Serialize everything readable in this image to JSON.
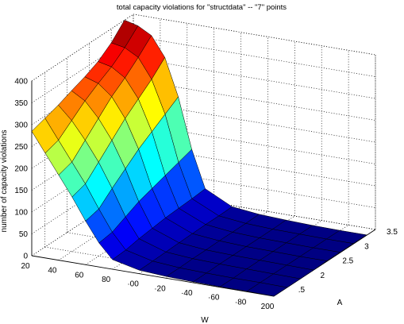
{
  "chart_data": {
    "type": "surface",
    "title": "total capacity violations for \"structdata\" -- \"7\" points",
    "xlabel": "W",
    "ylabel": "A",
    "zlabel": "number of capacity violations",
    "xlim": [
      20,
      200
    ],
    "ylim": [
      1.2,
      3.5
    ],
    "zlim": [
      0,
      400
    ],
    "x_ticks": [
      "20",
      "40",
      "60",
      "80",
      "100",
      "120",
      "140",
      "160",
      "180",
      "200"
    ],
    "x_ticks_visible": [
      "20",
      "40",
      "60",
      "80",
      "·00",
      "·20",
      "·40",
      "·60",
      "·80",
      "200"
    ],
    "y_ticks": [
      "1.5",
      "2",
      "2.5",
      "3",
      "3.5"
    ],
    "y_ticks_visible": [
      ".5",
      "2",
      "2.5",
      "3",
      "3.5"
    ],
    "z_ticks": [
      "0",
      "50",
      "100",
      "150",
      "200",
      "250",
      "300",
      "350",
      "400"
    ],
    "W": [
      20,
      30,
      40,
      50,
      60,
      70,
      80,
      100,
      120,
      140,
      160,
      180,
      200
    ],
    "A": [
      1.2,
      1.5,
      1.8,
      2.1,
      2.4,
      2.7,
      3.0,
      3.3
    ],
    "Z": [
      [
        285,
        240,
        195,
        150,
        100,
        55,
        22,
        8,
        4,
        2,
        1,
        1,
        0
      ],
      [
        295,
        250,
        205,
        160,
        108,
        60,
        24,
        9,
        4,
        2,
        1,
        1,
        0
      ],
      [
        305,
        275,
        235,
        190,
        135,
        75,
        30,
        10,
        5,
        3,
        2,
        1,
        0
      ],
      [
        318,
        300,
        265,
        220,
        160,
        90,
        34,
        11,
        5,
        3,
        2,
        1,
        0
      ],
      [
        330,
        320,
        295,
        250,
        185,
        100,
        38,
        12,
        6,
        3,
        2,
        1,
        1
      ],
      [
        345,
        338,
        318,
        275,
        205,
        110,
        40,
        13,
        6,
        3,
        2,
        1,
        1
      ],
      [
        368,
        362,
        345,
        300,
        225,
        120,
        42,
        13,
        6,
        3,
        2,
        1,
        1
      ],
      [
        400,
        392,
        375,
        330,
        245,
        130,
        45,
        14,
        7,
        4,
        2,
        1,
        1
      ]
    ],
    "colormap": "jet",
    "grid": true
  }
}
